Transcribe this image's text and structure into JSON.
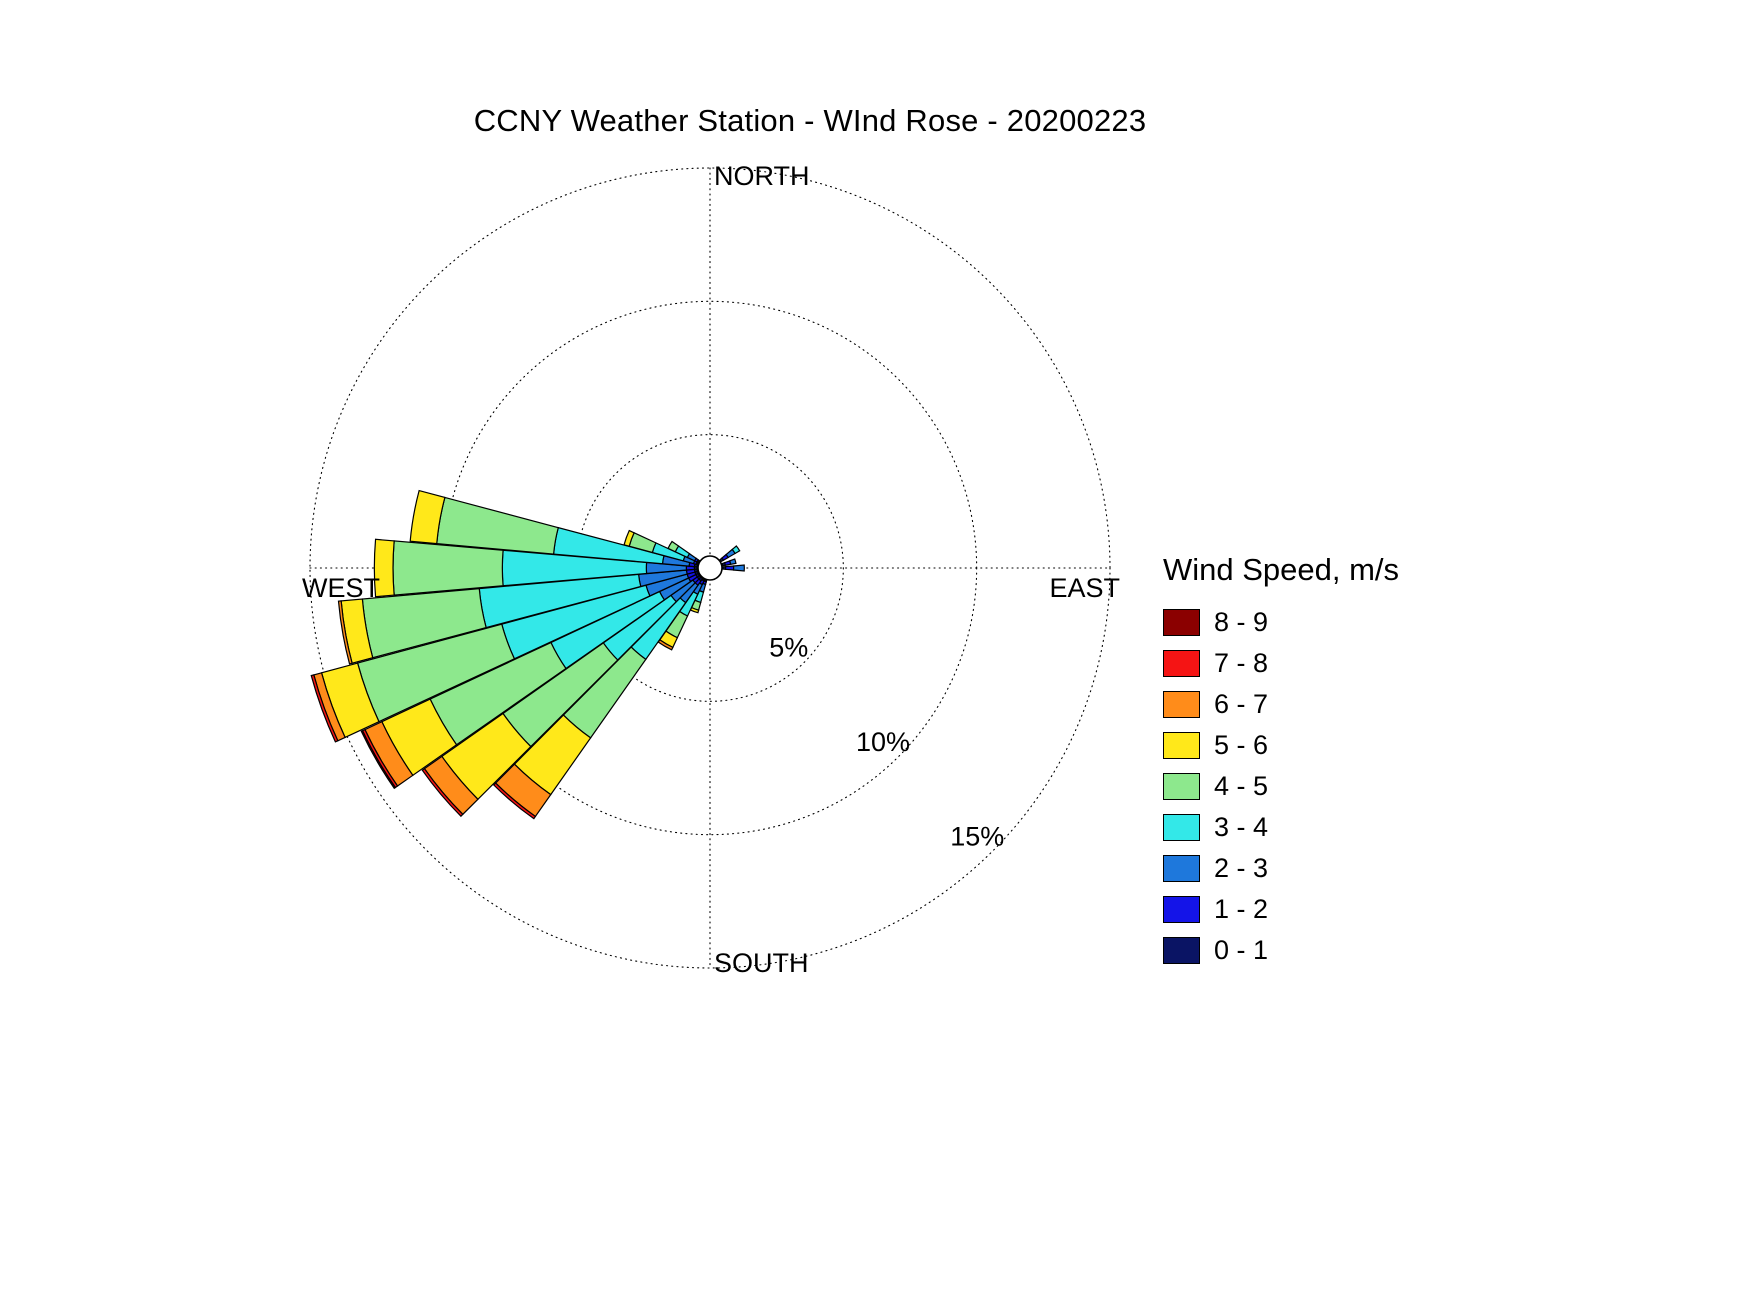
{
  "page": {
    "background": "#FFFFFF"
  },
  "chart_data": {
    "type": "windrose",
    "title": "CCNY Weather Station - WInd Rose - 20200223",
    "compass_labels": {
      "north": "NORTH",
      "east": "EAST",
      "south": "SOUTH",
      "west": "WEST"
    },
    "ring_labels": [
      "5%",
      "10%",
      "15%"
    ],
    "ring_percents": [
      5,
      10,
      15
    ],
    "rmax_percent": 15,
    "grid_style": "dotted",
    "legend": {
      "title": "Wind Speed, m/s",
      "bins": [
        {
          "label": "8 - 9",
          "color": "#8B0000"
        },
        {
          "label": "7 - 8",
          "color": "#F51414"
        },
        {
          "label": "6 - 7",
          "color": "#FF8C1A"
        },
        {
          "label": "5 - 6",
          "color": "#FFE81A"
        },
        {
          "label": "4 - 5",
          "color": "#8DE88D"
        },
        {
          "label": "3 - 4",
          "color": "#33E8E8"
        },
        {
          "label": "2 - 3",
          "color": "#1E78DC"
        },
        {
          "label": "1 - 2",
          "color": "#1414E8"
        },
        {
          "label": "0 - 1",
          "color": "#0A1464"
        }
      ]
    },
    "stack_order": [
      "0 - 1",
      "1 - 2",
      "2 - 3",
      "3 - 4",
      "4 - 5",
      "5 - 6",
      "6 - 7",
      "7 - 8",
      "8 - 9"
    ],
    "directions": [
      {
        "bearing_deg": 55,
        "values_percent": [
          0.1,
          0.2,
          0.3,
          0.2,
          0,
          0,
          0,
          0,
          0
        ]
      },
      {
        "bearing_deg": 75,
        "values_percent": [
          0.1,
          0.2,
          0.2,
          0,
          0,
          0,
          0,
          0,
          0
        ]
      },
      {
        "bearing_deg": 90,
        "values_percent": [
          0.1,
          0.3,
          0.4,
          0,
          0,
          0,
          0,
          0,
          0
        ]
      },
      {
        "bearing_deg": 200,
        "values_percent": [
          0.05,
          0.1,
          0.3,
          0.4,
          0.3,
          0.1,
          0,
          0,
          0
        ]
      },
      {
        "bearing_deg": 210,
        "values_percent": [
          0.05,
          0.15,
          0.4,
          0.9,
          0.9,
          0.4,
          0.1,
          0,
          0
        ]
      },
      {
        "bearing_deg": 220,
        "values_percent": [
          0.1,
          0.2,
          0.8,
          2.6,
          3.6,
          2.6,
          1.0,
          0.1,
          0
        ]
      },
      {
        "bearing_deg": 230,
        "values_percent": [
          0.1,
          0.2,
          1.0,
          3.1,
          4.6,
          2.8,
          0.8,
          0.1,
          0
        ]
      },
      {
        "bearing_deg": 240,
        "values_percent": [
          0.1,
          0.3,
          1.2,
          4.5,
          5.0,
          2.0,
          0.7,
          0.1,
          0.05
        ]
      },
      {
        "bearing_deg": 250,
        "values_percent": [
          0.1,
          0.3,
          1.6,
          5.6,
          5.6,
          1.4,
          0.3,
          0.1,
          0
        ]
      },
      {
        "bearing_deg": 260,
        "values_percent": [
          0.1,
          0.3,
          1.8,
          6.0,
          4.4,
          0.8,
          0.1,
          0,
          0
        ]
      },
      {
        "bearing_deg": 270,
        "values_percent": [
          0.1,
          0.3,
          1.5,
          5.4,
          4.1,
          0.7,
          0,
          0,
          0
        ]
      },
      {
        "bearing_deg": 280,
        "values_percent": [
          0.1,
          0.2,
          1.0,
          4.1,
          4.4,
          1.0,
          0,
          0,
          0
        ]
      },
      {
        "bearing_deg": 290,
        "values_percent": [
          0.05,
          0.1,
          0.4,
          1.2,
          0.9,
          0.2,
          0,
          0,
          0
        ]
      },
      {
        "bearing_deg": 300,
        "values_percent": [
          0.05,
          0.1,
          0.3,
          0.5,
          0.3,
          0,
          0,
          0,
          0
        ]
      }
    ],
    "center_calm_marker": true
  }
}
